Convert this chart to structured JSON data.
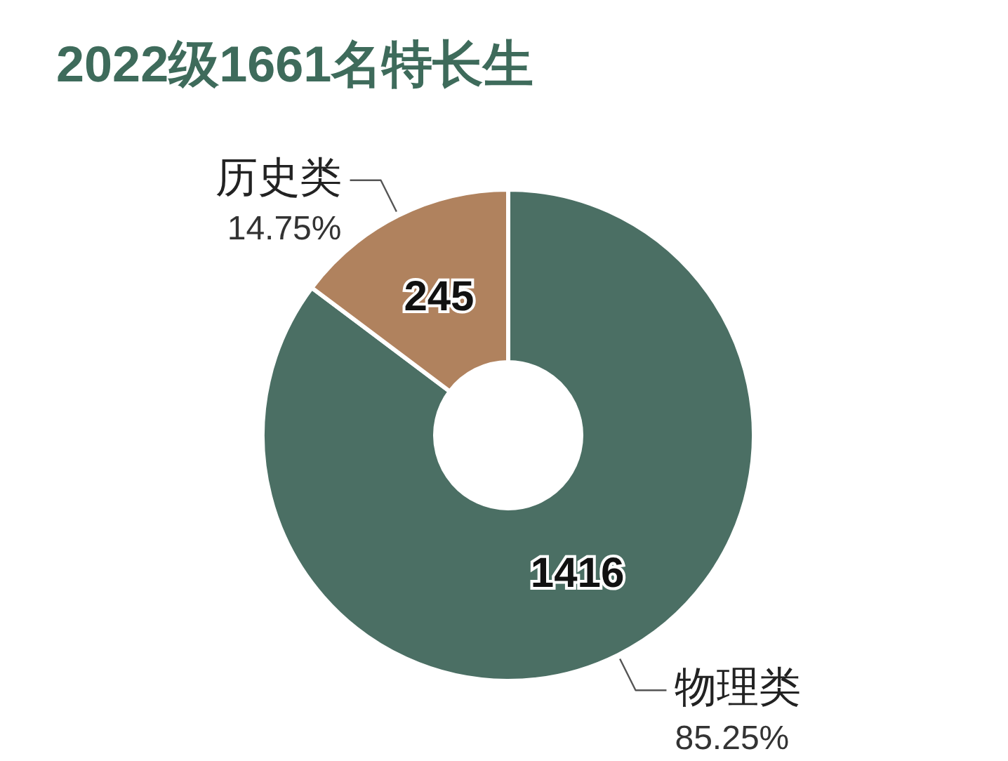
{
  "chart_data": {
    "type": "donut",
    "title": "2022级1661名特长生",
    "categories": [
      "物理类",
      "历史类"
    ],
    "values": [
      1416,
      245
    ],
    "colors": [
      "#4b6f64",
      "#b0825e"
    ],
    "data_labels": true,
    "annotations": [
      {
        "text": "85.25%",
        "x": "物理类"
      },
      {
        "text": "14.75%",
        "x": "历史类"
      }
    ]
  }
}
